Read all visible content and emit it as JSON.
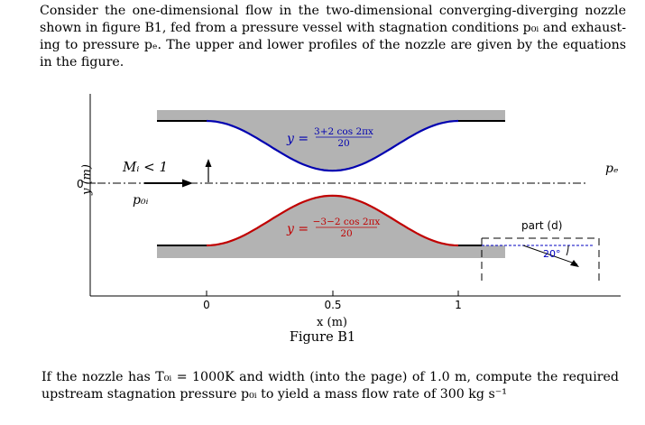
{
  "intro": "Consider the one-dimensional flow in the two-dimensional converging-diverging nozzle shown in figure B1, fed from a pressure vessel with stagnation conditions p₀ᵢ and exhaust­ing to pressure pₑ. The upper and lower profiles of the nozzle are given by the equations in the figure.",
  "figure": {
    "ylabel": "y (m)",
    "xlabel": "x (m)",
    "xticks": [
      "0",
      "0.5",
      "1"
    ],
    "ytick": "0",
    "mach_label": "Mᵢ < 1",
    "p0i_label": "p₀ᵢ",
    "pe_label": "pₑ",
    "upper_eq_lhs": "y =",
    "upper_eq_num": "3+2 cos 2πx",
    "upper_eq_den": "20",
    "lower_eq_lhs": "y =",
    "lower_eq_num": "−3−2 cos 2πx",
    "lower_eq_den": "20",
    "part_label": "part (d)",
    "angle_label": "20°",
    "upper_color": "#0000b0",
    "lower_color": "#c00000"
  },
  "caption": "Figure B1",
  "question": "If the nozzle has T₀ᵢ = 1000K and width (into the page) of 1.0 m, compute the re­quired upstream stagnation pressure p₀ᵢ to yield a mass flow rate of 300 kg s⁻¹"
}
